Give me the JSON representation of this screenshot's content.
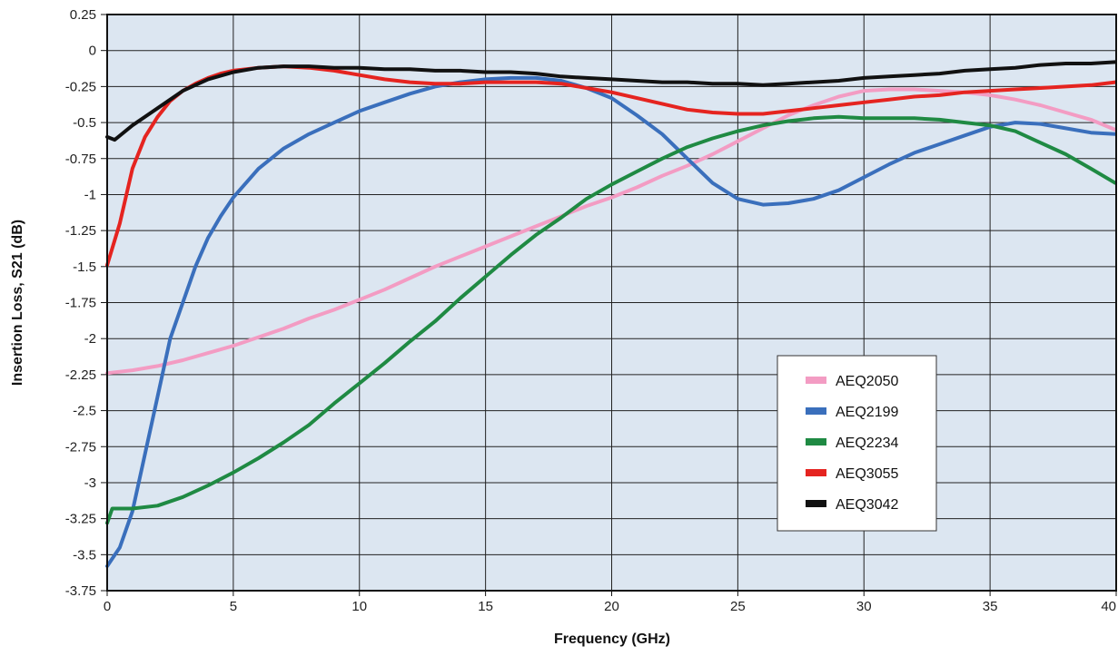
{
  "chart_data": {
    "type": "line",
    "xlabel": "Frequency (GHz)",
    "ylabel": "Insertion Loss, S21 (dB)",
    "xlim": [
      0,
      40
    ],
    "ylim": [
      -3.75,
      0.25
    ],
    "x_ticks": [
      0,
      5,
      10,
      15,
      20,
      25,
      30,
      35,
      40
    ],
    "y_ticks": [
      0.25,
      0,
      -0.25,
      -0.5,
      -0.75,
      -1,
      -1.25,
      -1.5,
      -1.75,
      -2,
      -2.25,
      -2.5,
      -2.75,
      -3,
      -3.25,
      -3.5,
      -3.75
    ],
    "x_tick_labels": [
      "0",
      "5",
      "10",
      "15",
      "20",
      "25",
      "30",
      "35",
      "40"
    ],
    "y_tick_labels": [
      "0.25",
      "0",
      "-0.25",
      "-0.5",
      "-0.75",
      "-1",
      "-1.25",
      "-1.5",
      "-1.75",
      "-2",
      "-2.25",
      "-2.5",
      "-2.75",
      "-3",
      "-3.25",
      "-3.5",
      "-3.75"
    ],
    "grid": true,
    "plot_background": "#dce6f1",
    "legend_position": "lower-right",
    "series": [
      {
        "name": "AEQ2050",
        "color": "#f39cc3",
        "x": [
          0,
          1,
          2,
          3,
          4,
          5,
          6,
          7,
          8,
          9,
          10,
          11,
          12,
          13,
          14,
          15,
          16,
          17,
          18,
          19,
          20,
          21,
          22,
          23,
          24,
          25,
          26,
          27,
          28,
          29,
          30,
          31,
          32,
          33,
          34,
          35,
          36,
          37,
          38,
          39,
          40
        ],
        "y": [
          -2.24,
          -2.22,
          -2.19,
          -2.15,
          -2.1,
          -2.05,
          -1.99,
          -1.93,
          -1.86,
          -1.8,
          -1.73,
          -1.66,
          -1.58,
          -1.5,
          -1.43,
          -1.36,
          -1.29,
          -1.22,
          -1.15,
          -1.08,
          -1.02,
          -0.95,
          -0.87,
          -0.8,
          -0.72,
          -0.63,
          -0.54,
          -0.45,
          -0.38,
          -0.32,
          -0.28,
          -0.27,
          -0.27,
          -0.28,
          -0.29,
          -0.31,
          -0.34,
          -0.38,
          -0.43,
          -0.48,
          -0.55
        ]
      },
      {
        "name": "AEQ2199",
        "color": "#3a6fbc",
        "x": [
          0,
          0.5,
          1,
          1.5,
          2,
          2.5,
          3,
          3.5,
          4,
          4.5,
          5,
          6,
          7,
          8,
          9,
          10,
          11,
          12,
          13,
          14,
          15,
          16,
          17,
          18,
          19,
          20,
          21,
          22,
          23,
          24,
          25,
          26,
          27,
          28,
          29,
          30,
          31,
          32,
          33,
          34,
          35,
          36,
          37,
          38,
          39,
          40
        ],
        "y": [
          -3.58,
          -3.45,
          -3.2,
          -2.8,
          -2.4,
          -2.0,
          -1.75,
          -1.5,
          -1.3,
          -1.15,
          -1.02,
          -0.82,
          -0.68,
          -0.58,
          -0.5,
          -0.42,
          -0.36,
          -0.3,
          -0.25,
          -0.22,
          -0.2,
          -0.19,
          -0.19,
          -0.21,
          -0.26,
          -0.33,
          -0.45,
          -0.58,
          -0.75,
          -0.92,
          -1.03,
          -1.07,
          -1.06,
          -1.03,
          -0.97,
          -0.88,
          -0.79,
          -0.71,
          -0.65,
          -0.59,
          -0.53,
          -0.5,
          -0.51,
          -0.54,
          -0.57,
          -0.58
        ]
      },
      {
        "name": "AEQ2234",
        "color": "#1f8a43",
        "x": [
          0,
          0.2,
          1,
          2,
          3,
          4,
          5,
          6,
          7,
          8,
          9,
          10,
          11,
          12,
          13,
          14,
          15,
          16,
          17,
          18,
          19,
          20,
          21,
          22,
          23,
          24,
          25,
          26,
          27,
          28,
          29,
          30,
          31,
          32,
          33,
          34,
          35,
          36,
          37,
          38,
          39,
          40
        ],
        "y": [
          -3.28,
          -3.18,
          -3.18,
          -3.16,
          -3.1,
          -3.02,
          -2.93,
          -2.83,
          -2.72,
          -2.6,
          -2.45,
          -2.31,
          -2.17,
          -2.02,
          -1.88,
          -1.72,
          -1.57,
          -1.42,
          -1.28,
          -1.16,
          -1.03,
          -0.93,
          -0.84,
          -0.75,
          -0.67,
          -0.61,
          -0.56,
          -0.52,
          -0.49,
          -0.47,
          -0.46,
          -0.47,
          -0.47,
          -0.47,
          -0.48,
          -0.5,
          -0.52,
          -0.56,
          -0.64,
          -0.72,
          -0.82,
          -0.92
        ]
      },
      {
        "name": "AEQ3055",
        "color": "#e52420",
        "x": [
          0,
          0.5,
          1,
          1.5,
          2,
          2.5,
          3,
          3.5,
          4,
          4.5,
          5,
          6,
          7,
          8,
          9,
          10,
          11,
          12,
          13,
          14,
          15,
          16,
          17,
          18,
          19,
          20,
          21,
          22,
          23,
          24,
          25,
          26,
          27,
          28,
          29,
          30,
          31,
          32,
          33,
          34,
          35,
          36,
          37,
          38,
          39,
          40
        ],
        "y": [
          -1.49,
          -1.2,
          -0.82,
          -0.6,
          -0.46,
          -0.35,
          -0.28,
          -0.23,
          -0.19,
          -0.16,
          -0.14,
          -0.12,
          -0.11,
          -0.12,
          -0.14,
          -0.17,
          -0.2,
          -0.22,
          -0.23,
          -0.23,
          -0.22,
          -0.22,
          -0.22,
          -0.23,
          -0.26,
          -0.29,
          -0.33,
          -0.37,
          -0.41,
          -0.43,
          -0.44,
          -0.44,
          -0.42,
          -0.4,
          -0.38,
          -0.36,
          -0.34,
          -0.32,
          -0.31,
          -0.29,
          -0.28,
          -0.27,
          -0.26,
          -0.25,
          -0.24,
          -0.22
        ]
      },
      {
        "name": "AEQ3042",
        "color": "#111111",
        "x": [
          0,
          0.3,
          1,
          2,
          3,
          4,
          5,
          6,
          7,
          8,
          9,
          10,
          11,
          12,
          13,
          14,
          15,
          16,
          17,
          18,
          19,
          20,
          21,
          22,
          23,
          24,
          25,
          26,
          27,
          28,
          29,
          30,
          31,
          32,
          33,
          34,
          35,
          36,
          37,
          38,
          39,
          40
        ],
        "y": [
          -0.6,
          -0.62,
          -0.52,
          -0.4,
          -0.28,
          -0.2,
          -0.15,
          -0.12,
          -0.11,
          -0.11,
          -0.12,
          -0.12,
          -0.13,
          -0.13,
          -0.14,
          -0.14,
          -0.15,
          -0.15,
          -0.16,
          -0.18,
          -0.19,
          -0.2,
          -0.21,
          -0.22,
          -0.22,
          -0.23,
          -0.23,
          -0.24,
          -0.23,
          -0.22,
          -0.21,
          -0.19,
          -0.18,
          -0.17,
          -0.16,
          -0.14,
          -0.13,
          -0.12,
          -0.1,
          -0.09,
          -0.09,
          -0.08
        ]
      }
    ]
  }
}
